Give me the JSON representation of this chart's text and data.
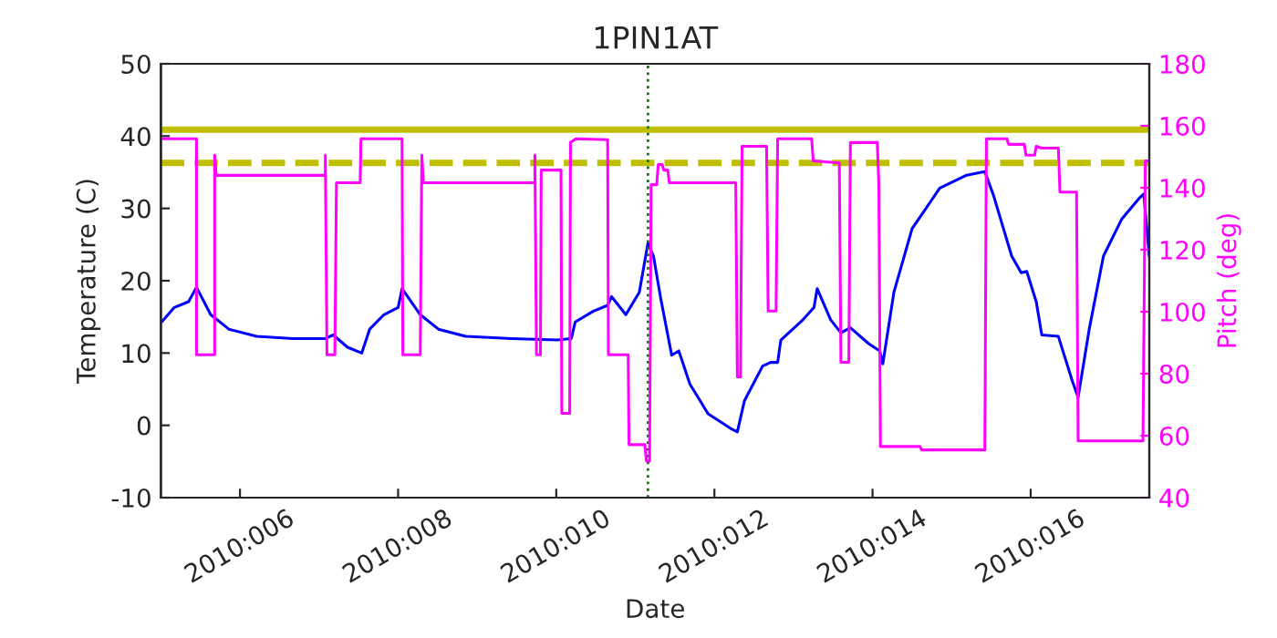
{
  "chart_data": {
    "type": "line",
    "title": "1PIN1AT",
    "xlabel": "Date",
    "ylabel": "Temperature (C)",
    "y2label": "Pitch (deg)",
    "xlim": [
      "2010-01-05T00:00",
      "2010-01-17T12:00"
    ],
    "xticks": [
      {
        "value": "2010-01-06",
        "label": "2010:006"
      },
      {
        "value": "2010-01-08",
        "label": "2010:008"
      },
      {
        "value": "2010-01-10",
        "label": "2010:010"
      },
      {
        "value": "2010-01-12",
        "label": "2010:012"
      },
      {
        "value": "2010-01-14",
        "label": "2010:014"
      },
      {
        "value": "2010-01-16",
        "label": "2010:016"
      }
    ],
    "ylim": [
      -10,
      50
    ],
    "yticks": [
      -10,
      0,
      10,
      20,
      30,
      40,
      50
    ],
    "y2lim": [
      40,
      180
    ],
    "y2ticks": [
      40,
      60,
      80,
      100,
      120,
      140,
      160,
      180
    ],
    "grid": false,
    "legend": false,
    "marker": "none",
    "line_style": "solid",
    "series": [
      {
        "color": "#0000ff",
        "axis": "y",
        "x": [
          "2010-01-05T00:14",
          "2010-01-05T04:05",
          "2010-01-05T08:24",
          "2010-01-05T10:48",
          "2010-01-05T15:07",
          "2010-01-05T20:38",
          "2010-01-06T05:02",
          "2010-01-06T16:05",
          "2010-01-07T01:55",
          "2010-01-07T04:19",
          "2010-01-07T08:38",
          "2010-01-07T12:58",
          "2010-01-07T15:22",
          "2010-01-07T19:41",
          "2010-01-08T00:00",
          "2010-01-08T01:12",
          "2010-01-08T06:43",
          "2010-01-08T12:14",
          "2010-01-08T20:38",
          "2010-01-09T10:19",
          "2010-01-10T00:14",
          "2010-01-10T04:34",
          "2010-01-10T05:46",
          "2010-01-10T11:17",
          "2010-01-10T15:36",
          "2010-01-10T16:48",
          "2010-01-10T21:07",
          "2010-01-11T01:12",
          "2010-01-11T03:50",
          "2010-01-11T05:31",
          "2010-01-11T07:41",
          "2010-01-11T11:02",
          "2010-01-11T13:12",
          "2010-01-11T16:34",
          "2010-01-11T22:05",
          "2010-01-12T04:48",
          "2010-01-12T06:58",
          "2010-01-12T09:07",
          "2010-01-12T14:38",
          "2010-01-12T17:02",
          "2010-01-12T19:12",
          "2010-01-12T20:10",
          "2010-01-13T02:53",
          "2010-01-13T06:14",
          "2010-01-13T07:12",
          "2010-01-13T11:17",
          "2010-01-13T14:24",
          "2010-01-13T17:17",
          "2010-01-13T22:48",
          "2010-01-14T02:10",
          "2010-01-14T03:07",
          "2010-01-14T06:29",
          "2010-01-14T12:00",
          "2010-01-14T20:24",
          "2010-01-15T04:34",
          "2010-01-15T10:05",
          "2010-01-15T12:43",
          "2010-01-15T18:14",
          "2010-01-15T21:07",
          "2010-01-15T22:48",
          "2010-01-16T01:41",
          "2010-01-16T03:22",
          "2010-01-16T08:24",
          "2010-01-16T12:43",
          "2010-01-16T14:24",
          "2010-01-16T17:46",
          "2010-01-16T22:05",
          "2010-01-17T03:36",
          "2010-01-17T09:07",
          "2010-01-17T10:19",
          "2010-01-17T12:00"
        ],
        "values": [
          14.3,
          16.3,
          17.1,
          19.1,
          15.3,
          13.3,
          12.3,
          12.0,
          12.0,
          12.5,
          10.8,
          10.0,
          13.3,
          15.3,
          16.3,
          18.9,
          15.3,
          13.3,
          12.3,
          12.0,
          11.8,
          12.0,
          14.3,
          15.8,
          16.6,
          17.8,
          15.3,
          18.4,
          25.2,
          23.4,
          17.6,
          9.7,
          10.3,
          5.7,
          1.6,
          -0.4,
          -0.9,
          3.4,
          8.2,
          8.7,
          8.7,
          11.8,
          14.6,
          16.3,
          18.9,
          14.6,
          12.8,
          13.5,
          11.3,
          10.3,
          8.5,
          18.4,
          27.2,
          32.8,
          34.6,
          35.1,
          31.8,
          23.4,
          21.1,
          21.3,
          17.1,
          12.5,
          12.3,
          6.0,
          3.9,
          13.3,
          23.4,
          28.5,
          31.5,
          32.0,
          23.4
        ]
      },
      {
        "color": "#ff00ff",
        "axis": "y2",
        "x": [
          "2010-01-05T00:14",
          "2010-01-05T10:48",
          "2010-01-05T10:48",
          "2010-01-05T16:19",
          "2010-01-05T16:19",
          "2010-01-05T16:48",
          "2010-01-07T01:55",
          "2010-01-07T01:55",
          "2010-01-07T02:24",
          "2010-01-07T04:48",
          "2010-01-07T05:17",
          "2010-01-07T12:29",
          "2010-01-07T12:43",
          "2010-01-08T01:12",
          "2010-01-08T01:26",
          "2010-01-08T06:43",
          "2010-01-08T07:12",
          "2010-01-08T07:41",
          "2010-01-09T17:31",
          "2010-01-09T17:31",
          "2010-01-09T18:00",
          "2010-01-09T19:12",
          "2010-01-09T19:26",
          "2010-01-10T01:26",
          "2010-01-10T01:41",
          "2010-01-10T04:05",
          "2010-01-10T04:19",
          "2010-01-10T06:00",
          "2010-01-10T15:36",
          "2010-01-10T15:50",
          "2010-01-10T21:50",
          "2010-01-10T22:05",
          "2010-01-11T02:53",
          "2010-01-11T03:22",
          "2010-01-11T04:19",
          "2010-01-11T04:48",
          "2010-01-11T06:29",
          "2010-01-11T06:58",
          "2010-01-11T08:10",
          "2010-01-11T08:38",
          "2010-01-11T09:50",
          "2010-01-11T10:19",
          "2010-01-12T06:29",
          "2010-01-12T06:58",
          "2010-01-12T07:55",
          "2010-01-12T08:24",
          "2010-01-12T15:50",
          "2010-01-12T16:19",
          "2010-01-12T18:43",
          "2010-01-12T19:12",
          "2010-01-13T05:31",
          "2010-01-13T06:00",
          "2010-01-13T13:55",
          "2010-01-13T14:24",
          "2010-01-13T16:48",
          "2010-01-13T17:17",
          "2010-01-14T01:26",
          "2010-01-14T01:55",
          "2010-01-14T02:24",
          "2010-01-14T14:24",
          "2010-01-14T14:53",
          "2010-01-15T10:05",
          "2010-01-15T10:34",
          "2010-01-15T16:48",
          "2010-01-15T17:17",
          "2010-01-15T22:05",
          "2010-01-15T22:34",
          "2010-01-16T01:12",
          "2010-01-16T01:41",
          "2010-01-16T03:22",
          "2010-01-16T08:24",
          "2010-01-16T08:53",
          "2010-01-16T13:55",
          "2010-01-16T14:24",
          "2010-01-17T10:05",
          "2010-01-17T10:48",
          "2010-01-17T12:00"
        ],
        "values": [
          155.8,
          155.8,
          86.1,
          86.1,
          150.5,
          144,
          144,
          150.5,
          86.1,
          86.1,
          141.6,
          141.6,
          155.8,
          155.8,
          86.1,
          86.1,
          150.5,
          141.6,
          141.6,
          150.5,
          86.1,
          86.1,
          145.7,
          145.7,
          67.2,
          67.2,
          154.6,
          155.8,
          155.5,
          86.1,
          86.1,
          57.1,
          57.1,
          51.8,
          51.8,
          141,
          141,
          147.5,
          147.5,
          145.7,
          145.7,
          141.6,
          141.6,
          79,
          79,
          153.4,
          153.4,
          100.2,
          100.2,
          155.8,
          155.8,
          148.7,
          148,
          83.7,
          83.7,
          154.6,
          154.6,
          141,
          56.5,
          56.5,
          55.4,
          55.4,
          155.8,
          155.8,
          154,
          154,
          150.5,
          150.5,
          153.4,
          152.8,
          152.8,
          138.6,
          138.6,
          58.3,
          58.3,
          148.7,
          148.7
        ]
      }
    ],
    "ref_lines": [
      {
        "axis": "y",
        "value": 40.9,
        "color": "#bfbf00",
        "line_style": "solid"
      },
      {
        "axis": "y",
        "value": 36.3,
        "color": "#bfbf00",
        "line_style": "dashed"
      },
      {
        "axis": "x",
        "value": "2010-01-11T03:50",
        "color": "#008000",
        "line_style": "dotted"
      }
    ]
  }
}
